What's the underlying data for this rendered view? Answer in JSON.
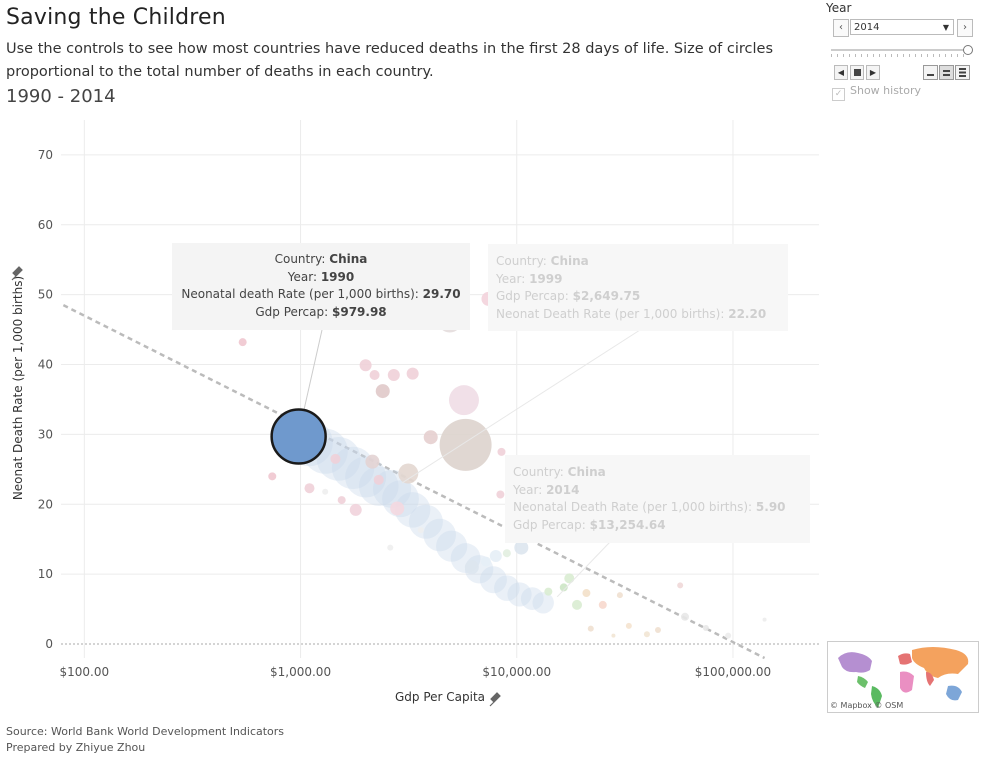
{
  "title": "Saving the Children",
  "subtitle": "Use the controls to see how most countries have reduced deaths in the first 28 days of life. Size of circles proportional to the total number of deaths in each country.",
  "range": "1990 - 2014",
  "controls": {
    "label": "Year",
    "year_value": "2014",
    "show_history_label": "Show history",
    "slider_value": 1.0
  },
  "tooltips": [
    {
      "country_label": "Country:",
      "country": "China",
      "year_label": "Year:",
      "year": "1990",
      "l3": "Neonatal death Rate (per 1,000 births):",
      "v3": "29.70",
      "l4": "Gdp Percap:",
      "v4": "$979.98"
    },
    {
      "country_label": "Country:",
      "country": "China",
      "year_label": "Year:",
      "year": "1999",
      "l3": "Gdp Percap:",
      "v3": "$2,649.75",
      "l4": "Neonat Death Rate (per 1,000 births):",
      "v4": "22.20"
    },
    {
      "country_label": "Country:",
      "country": "China",
      "year_label": "Year:",
      "year": "2014",
      "l3": "Neonatal Death Rate (per 1,000 births):",
      "v3": "5.90",
      "l4": "Gdp Percap:",
      "v4": "$13,254.64"
    }
  ],
  "map_credit": "© Mapbox © OSM",
  "source": {
    "line1": "Source: World Bank World Development Indicators",
    "line2": "Prepared by Zhiyue Zhou"
  },
  "colors": {
    "china": "#6f99cd",
    "china_trail": "#c8d8ea",
    "trend": "#bbbbbb"
  },
  "chart_data": {
    "type": "scatter",
    "xlabel": "Gdp Per Capita",
    "ylabel": "Neonat Death Rate (per 1,000 births)",
    "x_scale": "log",
    "xlim": [
      78,
      250000
    ],
    "ylim": [
      -2,
      75
    ],
    "x_ticks": [
      {
        "value": 100,
        "label": "$100.00"
      },
      {
        "value": 1000,
        "label": "$1,000.00"
      },
      {
        "value": 10000,
        "label": "$10,000.00"
      },
      {
        "value": 100000,
        "label": "$100,000.00"
      }
    ],
    "y_ticks": [
      {
        "value": 0,
        "label": "0"
      },
      {
        "value": 10,
        "label": "10"
      },
      {
        "value": 20,
        "label": "20"
      },
      {
        "value": 30,
        "label": "30"
      },
      {
        "value": 40,
        "label": "40"
      },
      {
        "value": 50,
        "label": "50"
      },
      {
        "value": 60,
        "label": "60"
      },
      {
        "value": 70,
        "label": "70"
      }
    ],
    "trend_line": {
      "x": [
        80,
        140000
      ],
      "y": [
        48.5,
        -2
      ]
    },
    "highlighted": {
      "country": "China",
      "year": 1990,
      "x": 979.98,
      "y": 29.7
    },
    "history_trail": {
      "country": "China",
      "points": [
        {
          "x": 979.98,
          "y": 29.7
        },
        {
          "x": 1100,
          "y": 28.8
        },
        {
          "x": 1300,
          "y": 27.6
        },
        {
          "x": 1500,
          "y": 26.5
        },
        {
          "x": 1750,
          "y": 25.2
        },
        {
          "x": 2000,
          "y": 23.9
        },
        {
          "x": 2300,
          "y": 22.6
        },
        {
          "x": 2649.75,
          "y": 22.2
        },
        {
          "x": 2900,
          "y": 20.8
        },
        {
          "x": 3300,
          "y": 19.2
        },
        {
          "x": 3800,
          "y": 17.5
        },
        {
          "x": 4400,
          "y": 15.6
        },
        {
          "x": 5000,
          "y": 14.0
        },
        {
          "x": 5800,
          "y": 12.3
        },
        {
          "x": 6700,
          "y": 10.7
        },
        {
          "x": 7800,
          "y": 9.2
        },
        {
          "x": 9000,
          "y": 8.0
        },
        {
          "x": 10300,
          "y": 7.1
        },
        {
          "x": 11800,
          "y": 6.5
        },
        {
          "x": 13254.64,
          "y": 5.9
        }
      ]
    },
    "other_countries": [
      {
        "x": 5800,
        "y": 28.5,
        "r": 26,
        "color": "#ddd3cd"
      },
      {
        "x": 5700,
        "y": 34.9,
        "r": 15,
        "color": "#f0dde6"
      },
      {
        "x": 4900,
        "y": 46.3,
        "r": 12,
        "color": "#e4dddd"
      },
      {
        "x": 7400,
        "y": 49.4,
        "r": 7,
        "color": "#f3d3dc"
      },
      {
        "x": 810,
        "y": 30.5,
        "r": 9,
        "color": "#f0c7cf"
      },
      {
        "x": 1050,
        "y": 31.0,
        "r": 5,
        "color": "#f0d0d8"
      },
      {
        "x": 2150,
        "y": 26.1,
        "r": 7,
        "color": "#e3d3d3"
      },
      {
        "x": 2000,
        "y": 39.9,
        "r": 6,
        "color": "#f0d0d8"
      },
      {
        "x": 2200,
        "y": 38.5,
        "r": 5,
        "color": "#f0d0d8"
      },
      {
        "x": 2700,
        "y": 38.5,
        "r": 6,
        "color": "#f0d0d8"
      },
      {
        "x": 2400,
        "y": 36.2,
        "r": 7,
        "color": "#e0c9c9"
      },
      {
        "x": 4000,
        "y": 29.6,
        "r": 7,
        "color": "#e5cfcf"
      },
      {
        "x": 3150,
        "y": 24.4,
        "r": 10,
        "color": "#e3d7d0"
      },
      {
        "x": 2800,
        "y": 19.4,
        "r": 7,
        "color": "#f4d8e0"
      },
      {
        "x": 2300,
        "y": 23.5,
        "r": 5,
        "color": "#f0d0d8"
      },
      {
        "x": 1800,
        "y": 19.2,
        "r": 6,
        "color": "#f1d3db"
      },
      {
        "x": 1550,
        "y": 20.6,
        "r": 4,
        "color": "#f0d0d8"
      },
      {
        "x": 1450,
        "y": 26.5,
        "r": 5,
        "color": "#f0d0d8"
      },
      {
        "x": 1100,
        "y": 22.3,
        "r": 5,
        "color": "#f0d0d8"
      },
      {
        "x": 540,
        "y": 43.2,
        "r": 4,
        "color": "#f0c7cf"
      },
      {
        "x": 740,
        "y": 24.0,
        "r": 4,
        "color": "#f0c7cf"
      },
      {
        "x": 3300,
        "y": 38.7,
        "r": 6,
        "color": "#f0d0d8"
      },
      {
        "x": 8500,
        "y": 27.5,
        "r": 4,
        "color": "#f0d0d8"
      },
      {
        "x": 8400,
        "y": 21.4,
        "r": 4,
        "color": "#f0d0d8"
      },
      {
        "x": 9000,
        "y": 13.0,
        "r": 4,
        "color": "#e2eee0"
      },
      {
        "x": 10500,
        "y": 13.8,
        "r": 7,
        "color": "#dde6ee"
      },
      {
        "x": 8000,
        "y": 12.6,
        "r": 6,
        "color": "#e6eef6"
      },
      {
        "x": 7200,
        "y": 11.8,
        "r": 5,
        "color": "#e6eef6"
      },
      {
        "x": 6200,
        "y": 11.0,
        "r": 7,
        "color": "#dde6ee"
      },
      {
        "x": 14000,
        "y": 7.5,
        "r": 4,
        "color": "#d9ecd2"
      },
      {
        "x": 16500,
        "y": 8.1,
        "r": 4,
        "color": "#cce5c4"
      },
      {
        "x": 17500,
        "y": 9.4,
        "r": 5,
        "color": "#d9ecd2"
      },
      {
        "x": 19000,
        "y": 5.6,
        "r": 5,
        "color": "#d9ecd2"
      },
      {
        "x": 21000,
        "y": 7.3,
        "r": 4,
        "color": "#f3e0c9"
      },
      {
        "x": 25000,
        "y": 5.6,
        "r": 4,
        "color": "#f7d8cd"
      },
      {
        "x": 33000,
        "y": 2.6,
        "r": 3,
        "color": "#f5e3cf"
      },
      {
        "x": 45000,
        "y": 2.0,
        "r": 3,
        "color": "#f0e0d0"
      },
      {
        "x": 60000,
        "y": 3.9,
        "r": 4,
        "color": "#e8e8e8"
      },
      {
        "x": 75000,
        "y": 2.3,
        "r": 3,
        "color": "#e8e8e8"
      },
      {
        "x": 95000,
        "y": 1.2,
        "r": 3,
        "color": "#ececec"
      },
      {
        "x": 140000,
        "y": 3.5,
        "r": 2,
        "color": "#ececec"
      },
      {
        "x": 57000,
        "y": 8.4,
        "r": 3,
        "color": "#f0d8d8"
      },
      {
        "x": 30000,
        "y": 7.0,
        "r": 3,
        "color": "#f0e0d0"
      },
      {
        "x": 40000,
        "y": 1.4,
        "r": 3,
        "color": "#f2e6d4"
      },
      {
        "x": 28000,
        "y": 1.2,
        "r": 2,
        "color": "#f2e6d4"
      },
      {
        "x": 22000,
        "y": 2.2,
        "r": 3,
        "color": "#f0e0d0"
      },
      {
        "x": 12000,
        "y": 17.0,
        "r": 3,
        "color": "#e6eef6"
      },
      {
        "x": 1300,
        "y": 21.8,
        "r": 3,
        "color": "#eeeeee"
      },
      {
        "x": 3600,
        "y": 16.3,
        "r": 3,
        "color": "#eeeeee"
      },
      {
        "x": 2600,
        "y": 13.8,
        "r": 3,
        "color": "#eeeeee"
      }
    ]
  }
}
